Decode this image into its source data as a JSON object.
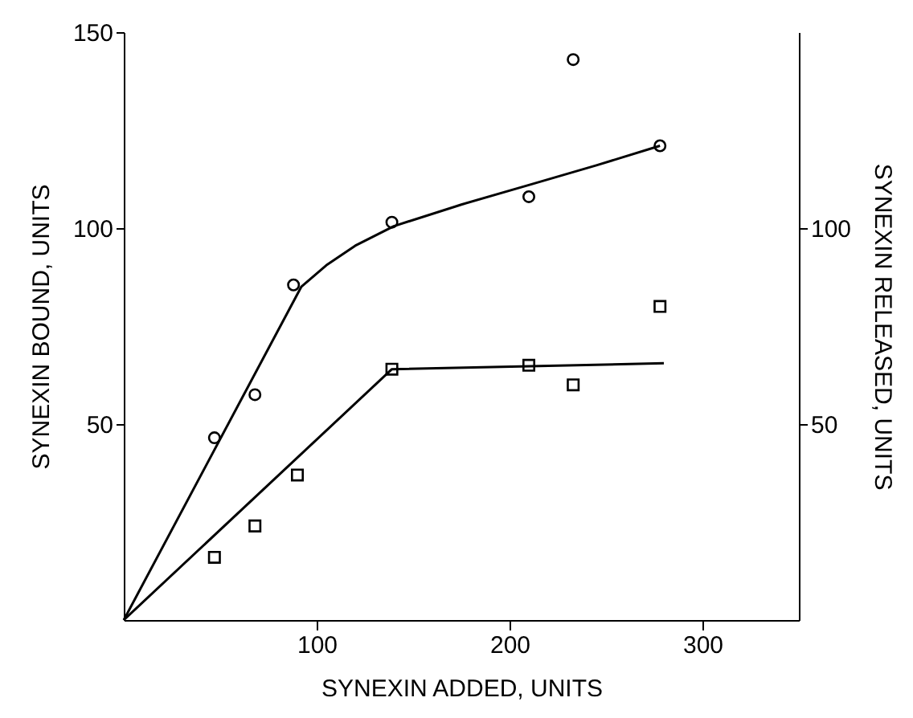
{
  "chart_data": {
    "type": "scatter",
    "xlabel": "SYNEXIN ADDED, UNITS",
    "ylabel": "SYNEXIN BOUND, UNITS",
    "y2label": "SYNEXIN RELEASED, UNITS",
    "xlim": [
      0,
      350
    ],
    "xticks": [
      100,
      200,
      300
    ],
    "ylim": [
      0,
      150
    ],
    "yticks": [
      50,
      100,
      150
    ],
    "y2lim": [
      0,
      150
    ],
    "y2ticks": [
      50,
      100
    ],
    "grid": false,
    "series": [
      {
        "marker": "circle",
        "color": "#000000",
        "x": [
          47,
          68,
          88,
          139,
          210,
          233,
          278
        ],
        "values": [
          46.5,
          57.5,
          85.5,
          101.5,
          108,
          143,
          121
        ]
      },
      {
        "type": "line",
        "marker": "none",
        "color": "#000000",
        "x": [
          0,
          92,
          105,
          120,
          140,
          175,
          210,
          245,
          278
        ],
        "values": [
          0,
          85,
          90.5,
          95.5,
          100.5,
          106,
          111,
          116,
          121
        ]
      },
      {
        "marker": "square",
        "axis": "y2",
        "color": "#000000",
        "x": [
          47,
          68,
          90,
          139,
          210,
          233,
          278
        ],
        "values": [
          16,
          24,
          37,
          64,
          65,
          60,
          80
        ]
      },
      {
        "type": "line",
        "marker": "none",
        "axis": "y2",
        "color": "#000000",
        "x": [
          0,
          139,
          280
        ],
        "values": [
          0,
          64,
          65.5
        ]
      }
    ]
  }
}
